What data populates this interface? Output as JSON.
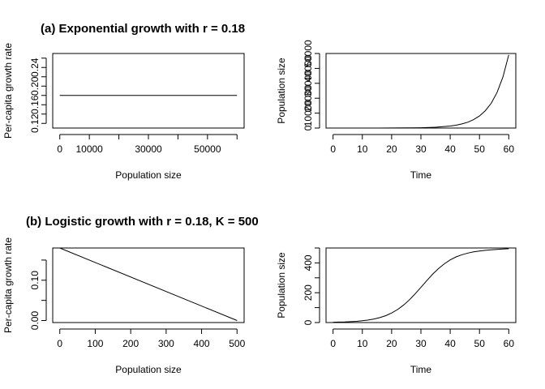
{
  "chart_data": [
    {
      "type": "line",
      "title": "(a) Exponential growth with r = 0.18",
      "xlabel": "Population size",
      "ylabel": "Per-capita growth rate",
      "xlim": [
        0,
        60000
      ],
      "ylim": [
        0.11,
        0.27
      ],
      "xticks": [
        0,
        10000,
        30000,
        50000
      ],
      "xtick_labels": [
        "0",
        "10000",
        "30000",
        "50000"
      ],
      "xtick_marks": [
        0,
        10000,
        20000,
        30000,
        40000,
        50000,
        60000
      ],
      "yticks": [
        0.12,
        0.14,
        0.16,
        0.18,
        0.2,
        0.22,
        0.24,
        0.26
      ],
      "ytick_labels": [
        "0.12",
        "",
        "0.16",
        "",
        "0.20",
        "",
        "0.24",
        ""
      ],
      "series": [
        {
          "x": [
            0,
            60000
          ],
          "y": [
            0.18,
            0.18
          ]
        }
      ]
    },
    {
      "type": "line",
      "xlabel": "Time",
      "ylabel": "Population size",
      "xlim": [
        0,
        60
      ],
      "ylim": [
        0,
        50000
      ],
      "xticks": [
        0,
        10,
        20,
        30,
        40,
        50,
        60
      ],
      "xtick_labels": [
        "0",
        "10",
        "20",
        "30",
        "40",
        "50",
        "60"
      ],
      "yticks": [
        0,
        10000,
        20000,
        30000,
        40000,
        50000
      ],
      "ytick_labels": [
        "0",
        "10000",
        "20000",
        "30000",
        "40000",
        "50000"
      ],
      "series": [
        {
          "x": [
            0,
            5,
            10,
            15,
            20,
            25,
            30,
            35,
            40,
            42,
            44,
            46,
            48,
            50,
            52,
            54,
            56,
            58,
            60
          ],
          "y": [
            1,
            2.5,
            6,
            15,
            37,
            90,
            221,
            545,
            1339,
            1919,
            2750,
            3940,
            5646,
            8103,
            11614,
            16645,
            23850,
            34180,
            49000
          ]
        }
      ]
    },
    {
      "type": "line",
      "title": "(b) Logistic growth with r = 0.18, K = 500",
      "xlabel": "Population size",
      "ylabel": "Per-capita growth rate",
      "xlim": [
        0,
        500
      ],
      "ylim": [
        -0.005,
        0.18
      ],
      "xticks": [
        0,
        100,
        200,
        300,
        400,
        500
      ],
      "xtick_labels": [
        "0",
        "100",
        "200",
        "300",
        "400",
        "500"
      ],
      "yticks": [
        0.0,
        0.05,
        0.1,
        0.15
      ],
      "ytick_labels": [
        "0.00",
        "",
        "0.10",
        ""
      ],
      "series": [
        {
          "x": [
            0,
            500
          ],
          "y": [
            0.18,
            0.0
          ]
        }
      ]
    },
    {
      "type": "line",
      "xlabel": "Time",
      "ylabel": "Population size",
      "xlim": [
        0,
        60
      ],
      "ylim": [
        0,
        500
      ],
      "xticks": [
        0,
        10,
        20,
        30,
        40,
        50,
        60
      ],
      "xtick_labels": [
        "0",
        "10",
        "20",
        "30",
        "40",
        "50",
        "60"
      ],
      "yticks": [
        0,
        100,
        200,
        300,
        400,
        500
      ],
      "ytick_labels": [
        "0",
        "",
        "200",
        "",
        "400",
        ""
      ],
      "series": [
        {
          "x": [
            0,
            2,
            4,
            6,
            8,
            10,
            12,
            14,
            16,
            18,
            20,
            22,
            24,
            26,
            28,
            30,
            32,
            34,
            36,
            38,
            40,
            42,
            44,
            46,
            48,
            50,
            52,
            54,
            56,
            58,
            60
          ],
          "y": [
            2,
            3,
            4,
            6,
            8,
            12,
            17,
            24,
            33,
            46,
            64,
            87,
            116,
            151,
            192,
            236,
            281,
            324,
            362,
            394,
            420,
            440,
            455,
            466,
            474,
            480,
            484,
            488,
            491,
            493,
            495
          ]
        }
      ]
    }
  ]
}
